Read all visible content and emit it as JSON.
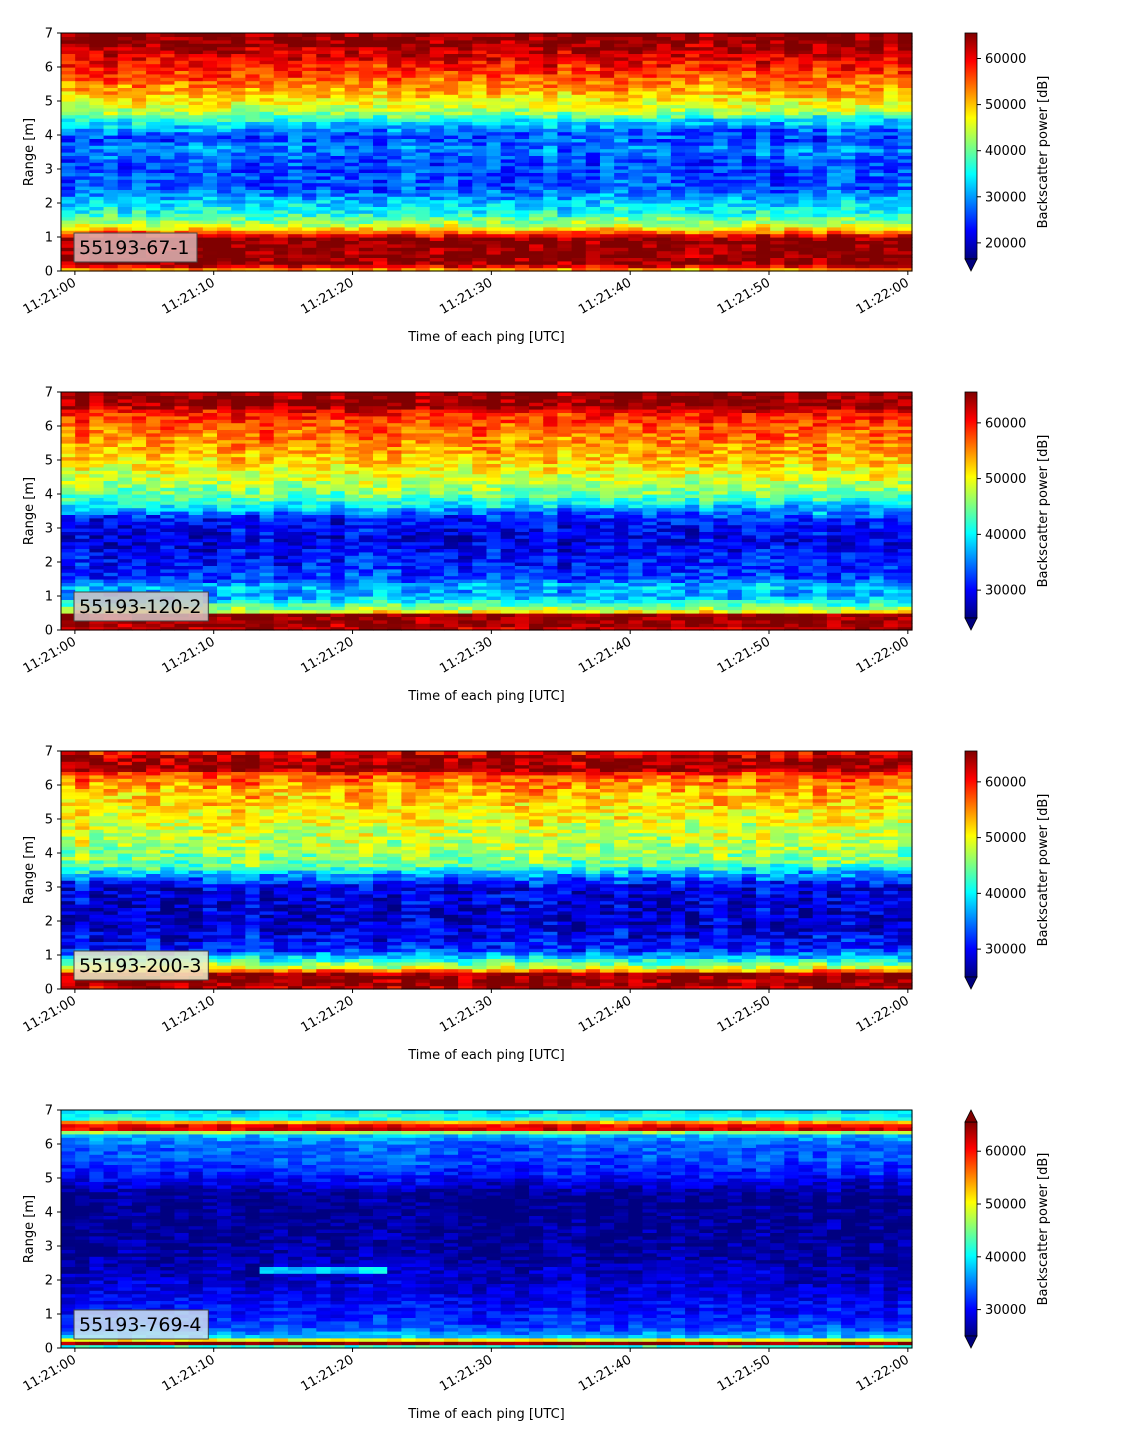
{
  "chart_data": [
    {
      "type": "heatmap",
      "label": "55193-67-1",
      "label_box_color": "#ddb4b4",
      "xlabel": "Time of each ping [UTC]",
      "ylabel": "Range [m]",
      "xtick_labels": [
        "11:21:00",
        "11:21:10",
        "11:21:20",
        "11:21:30",
        "11:21:40",
        "11:21:50",
        "11:22:00"
      ],
      "xlim_seconds": [
        -1,
        60.3
      ],
      "yticks": [
        0,
        1,
        2,
        3,
        4,
        5,
        6,
        7
      ],
      "ylim": [
        0,
        7
      ],
      "colorbar": {
        "label": "Backscatter power [dB]",
        "ticks": [
          20000,
          30000,
          40000,
          50000,
          60000
        ],
        "range": [
          16500,
          65535
        ],
        "extend_min": true,
        "extend_max": false
      },
      "profile": [
        [
          0.0,
          48000
        ],
        [
          0.2,
          65000
        ],
        [
          0.95,
          65000
        ],
        [
          1.1,
          57000
        ],
        [
          1.3,
          46000
        ],
        [
          1.7,
          36000
        ],
        [
          2.0,
          33000
        ],
        [
          2.4,
          27000
        ],
        [
          3.2,
          26000
        ],
        [
          3.6,
          29000
        ],
        [
          3.9,
          25000
        ],
        [
          4.3,
          33000
        ],
        [
          4.7,
          43000
        ],
        [
          5.2,
          50000
        ],
        [
          5.8,
          56000
        ],
        [
          6.2,
          60000
        ],
        [
          6.55,
          63000
        ],
        [
          6.7,
          65000
        ],
        [
          7.0,
          65000
        ]
      ],
      "bands": [
        {
          "range": [
            3.55,
            3.8
          ],
          "drift_per_minute": 0.45
        },
        {
          "range": [
            3.8,
            4.3
          ],
          "drift_per_minute": 0.3
        }
      ],
      "noise": 6000,
      "seed": 11
    },
    {
      "type": "heatmap",
      "label": "55193-120-2",
      "label_box_color": "#d6c4c4",
      "xlabel": "Time of each ping [UTC]",
      "ylabel": "Range [m]",
      "xtick_labels": [
        "11:21:00",
        "11:21:10",
        "11:21:20",
        "11:21:30",
        "11:21:40",
        "11:21:50",
        "11:22:00"
      ],
      "xlim_seconds": [
        -1,
        60.3
      ],
      "yticks": [
        0,
        1,
        2,
        3,
        4,
        5,
        6,
        7
      ],
      "ylim": [
        0,
        7
      ],
      "colorbar": {
        "label": "Backscatter power [dB]",
        "ticks": [
          30000,
          40000,
          50000,
          60000
        ],
        "range": [
          25000,
          65535
        ],
        "extend_min": true,
        "extend_max": false
      },
      "profile": [
        [
          0.0,
          62000
        ],
        [
          0.1,
          65000
        ],
        [
          0.45,
          65000
        ],
        [
          0.55,
          50000
        ],
        [
          0.8,
          42000
        ],
        [
          1.0,
          36000
        ],
        [
          1.3,
          38000
        ],
        [
          1.5,
          33000
        ],
        [
          2.0,
          31000
        ],
        [
          2.7,
          29000
        ],
        [
          3.3,
          31000
        ],
        [
          3.5,
          38000
        ],
        [
          3.9,
          44000
        ],
        [
          4.5,
          49000
        ],
        [
          5.3,
          54000
        ],
        [
          6.0,
          57000
        ],
        [
          6.4,
          60000
        ],
        [
          6.6,
          65000
        ],
        [
          7.0,
          65000
        ]
      ],
      "bands": [
        {
          "range": [
            3.2,
            3.5
          ],
          "drift_per_minute": 0.3
        },
        {
          "range": [
            3.5,
            3.9
          ],
          "drift_per_minute": 0.2
        }
      ],
      "noise": 5000,
      "seed": 23
    },
    {
      "type": "heatmap",
      "label": "55193-200-3",
      "label_box_color": "#f0edc8",
      "xlabel": "Time of each ping [UTC]",
      "ylabel": "Range [m]",
      "xtick_labels": [
        "11:21:00",
        "11:21:10",
        "11:21:20",
        "11:21:30",
        "11:21:40",
        "11:21:50",
        "11:22:00"
      ],
      "xlim_seconds": [
        -1,
        60.3
      ],
      "yticks": [
        0,
        1,
        2,
        3,
        4,
        5,
        6,
        7
      ],
      "ylim": [
        0,
        7
      ],
      "colorbar": {
        "label": "Backscatter power [dB]",
        "ticks": [
          30000,
          40000,
          50000,
          60000
        ],
        "range": [
          25000,
          65535
        ],
        "extend_min": true,
        "extend_max": false
      },
      "profile": [
        [
          0.0,
          62000
        ],
        [
          0.15,
          65000
        ],
        [
          0.45,
          65000
        ],
        [
          0.6,
          50000
        ],
        [
          0.9,
          40000
        ],
        [
          1.2,
          31000
        ],
        [
          2.0,
          28000
        ],
        [
          3.0,
          29000
        ],
        [
          3.3,
          35000
        ],
        [
          3.6,
          44000
        ],
        [
          4.2,
          47000
        ],
        [
          5.0,
          50000
        ],
        [
          5.8,
          53000
        ],
        [
          6.3,
          57000
        ],
        [
          6.5,
          65000
        ],
        [
          6.8,
          64000
        ],
        [
          7.0,
          60000
        ]
      ],
      "bands": [
        {
          "range": [
            3.2,
            3.5
          ],
          "drift_per_minute": 0.2
        }
      ],
      "noise": 5500,
      "seed": 37
    },
    {
      "type": "heatmap",
      "label": "55193-769-4",
      "label_box_color": "#d0e2f0",
      "xlabel": "Time of each ping [UTC]",
      "ylabel": "Range [m]",
      "xtick_labels": [
        "11:21:00",
        "11:21:10",
        "11:21:20",
        "11:21:30",
        "11:21:40",
        "11:21:50",
        "11:22:00"
      ],
      "xlim_seconds": [
        -1,
        60.3
      ],
      "yticks": [
        0,
        1,
        2,
        3,
        4,
        5,
        6,
        7
      ],
      "ylim": [
        0,
        7
      ],
      "colorbar": {
        "label": "Backscatter power [dB]",
        "ticks": [
          30000,
          40000,
          50000,
          60000
        ],
        "range": [
          25000,
          65535
        ],
        "extend_min": true,
        "extend_max": true
      },
      "profile": [
        [
          0.0,
          30000
        ],
        [
          0.15,
          65000
        ],
        [
          0.25,
          50000
        ],
        [
          0.35,
          38000
        ],
        [
          0.6,
          33000
        ],
        [
          1.0,
          31000
        ],
        [
          2.0,
          28000
        ],
        [
          3.0,
          26000
        ],
        [
          4.5,
          25500
        ],
        [
          5.0,
          30000
        ],
        [
          5.5,
          33000
        ],
        [
          6.0,
          34000
        ],
        [
          6.3,
          38000
        ],
        [
          6.45,
          62000
        ],
        [
          6.6,
          60000
        ],
        [
          6.75,
          42000
        ],
        [
          7.0,
          38000
        ]
      ],
      "bands": [
        {
          "range": [
            2.2,
            2.4
          ],
          "time_range": [
            13,
            23
          ],
          "level": 38000
        }
      ],
      "noise": 3500,
      "seed": 53
    }
  ]
}
